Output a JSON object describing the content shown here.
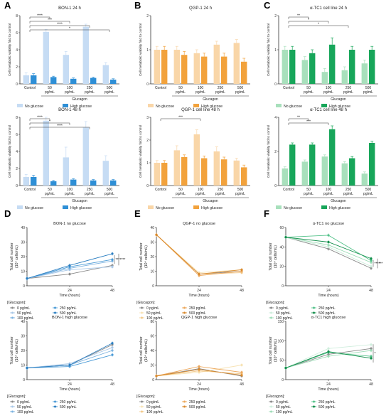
{
  "colors": {
    "A_light": "#c6dcf4",
    "A_dark": "#2e8fd6",
    "B_light": "#f9d6a8",
    "B_dark": "#f2a23c",
    "C_light": "#a8e0bc",
    "C_dark": "#17a65a",
    "line_blue": [
      "#8a8a8a",
      "#a9c8e8",
      "#7db3e0",
      "#4a9ad6",
      "#2b7fc2"
    ],
    "line_orange": [
      "#8a8a8a",
      "#f7e3b5",
      "#f2c98a",
      "#eda75a",
      "#d9892c"
    ],
    "line_green": [
      "#8a8a8a",
      "#cfeedd",
      "#9fdcb8",
      "#54c28a",
      "#138f4c"
    ]
  },
  "panel_labels": [
    "A",
    "B",
    "C",
    "D",
    "E",
    "F"
  ],
  "common": {
    "bar_ylabel": "Cell metabolic viability fold to control",
    "bar_categories": [
      "Control",
      "50\npg/mL",
      "100\npg/mL",
      "250\npg/mL",
      "500\npg/mL"
    ],
    "bar_xlabel": "Glucagon",
    "legend_no": "No glucose",
    "legend_high": "High glucose",
    "line_ylabel": "Total cell number\n(10⁴ cells/mL)",
    "line_xlabel": "Time (hours)",
    "line_ticks_x": [
      "24",
      "48"
    ],
    "legend_title": "[Glucagon]:",
    "legend_items": [
      "0 pg/mL",
      "50 pg/mL",
      "100 pg/mL",
      "250 pg/mL",
      "500 pg/mL"
    ]
  },
  "chart_data": [
    {
      "id": "A1",
      "type": "bar",
      "title": "BON-1 24 h",
      "colorset": "A",
      "ylim": [
        0,
        8
      ],
      "yticks": [
        "0",
        "2",
        "4",
        "6",
        "8"
      ],
      "series": [
        {
          "name": "No glucose",
          "values": [
            1.0,
            6.1,
            3.4,
            6.7,
            2.2
          ],
          "err": [
            0.3,
            0.3,
            0.4,
            0.3,
            0.3
          ]
        },
        {
          "name": "High glucose",
          "values": [
            1.0,
            0.8,
            0.6,
            0.7,
            0.5
          ],
          "err": [
            0.2,
            0.1,
            0.1,
            0.1,
            0.1
          ]
        }
      ],
      "sig": [
        {
          "from": 0,
          "to": 1,
          "label": "****",
          "lvl": 1
        },
        {
          "from": 0,
          "to": 2,
          "label": "***",
          "lvl": 2
        },
        {
          "from": 0,
          "to": 3,
          "label": "****",
          "lvl": 3
        },
        {
          "from": 0,
          "to": 4,
          "label": "*",
          "lvl": 4
        }
      ]
    },
    {
      "id": "A2",
      "type": "bar",
      "title": "BON-1 48 h",
      "colorset": "A",
      "ylim": [
        0,
        8
      ],
      "yticks": [
        "0",
        "2",
        "4",
        "6",
        "8"
      ],
      "series": [
        {
          "name": "No glucose",
          "values": [
            1.0,
            7.6,
            3.3,
            6.8,
            2.9
          ],
          "err": [
            0.3,
            0.4,
            1.2,
            0.7,
            0.6
          ]
        },
        {
          "name": "High glucose",
          "values": [
            1.0,
            0.5,
            0.7,
            0.6,
            0.6
          ],
          "err": [
            0.2,
            0.1,
            0.1,
            0.1,
            0.1
          ]
        }
      ],
      "sig": [
        {
          "from": 0,
          "to": 1,
          "label": "****",
          "lvl": 1
        },
        {
          "from": 0,
          "to": 2,
          "label": "*",
          "lvl": 2
        },
        {
          "from": 0,
          "to": 3,
          "label": "****",
          "lvl": 3
        }
      ]
    },
    {
      "id": "B1",
      "type": "bar",
      "title": "QGP-1 24 h",
      "colorset": "B",
      "ylim": [
        0,
        2
      ],
      "yticks": [
        "0",
        "1",
        "2"
      ],
      "series": [
        {
          "name": "No glucose",
          "values": [
            1.0,
            1.0,
            0.9,
            1.15,
            1.2
          ],
          "err": [
            0.1,
            0.1,
            0.1,
            0.1,
            0.1
          ]
        },
        {
          "name": "High glucose",
          "values": [
            1.0,
            0.85,
            0.8,
            0.8,
            0.65
          ],
          "err": [
            0.1,
            0.1,
            0.1,
            0.1,
            0.1
          ]
        }
      ],
      "sig": []
    },
    {
      "id": "B2",
      "type": "bar",
      "title": "QGP-1 cell line 48 h",
      "colorset": "B",
      "ylim": [
        0,
        3
      ],
      "yticks": [
        "0",
        "1",
        "2",
        "3"
      ],
      "series": [
        {
          "name": "No glucose",
          "values": [
            1.0,
            1.55,
            2.25,
            1.5,
            1.1
          ],
          "err": [
            0.1,
            0.2,
            0.2,
            0.2,
            0.1
          ]
        },
        {
          "name": "High glucose",
          "values": [
            1.0,
            1.25,
            1.2,
            1.15,
            0.8
          ],
          "err": [
            0.1,
            0.1,
            0.1,
            0.1,
            0.1
          ]
        }
      ],
      "sig": [
        {
          "from": 0,
          "to": 2,
          "label": "***",
          "lvl": 1
        }
      ]
    },
    {
      "id": "C1",
      "type": "bar",
      "title": "α-TC1 cell line 24 h",
      "colorset": "C",
      "ylim": [
        0,
        2
      ],
      "yticks": [
        "0",
        "1",
        "2"
      ],
      "series": [
        {
          "name": "No glucose",
          "values": [
            1.0,
            0.7,
            0.35,
            0.4,
            0.6
          ],
          "err": [
            0.1,
            0.1,
            0.1,
            0.1,
            0.1
          ]
        },
        {
          "name": "High glucose",
          "values": [
            1.0,
            0.9,
            1.15,
            1.0,
            1.0
          ],
          "err": [
            0.1,
            0.1,
            0.2,
            0.1,
            0.1
          ]
        }
      ],
      "sig": [
        {
          "from": 0,
          "to": 1,
          "label": "**",
          "lvl": 1
        },
        {
          "from": 0,
          "to": 2,
          "label": "*",
          "lvl": 2
        },
        {
          "from": 0,
          "to": 3,
          "label": "*",
          "lvl": 3
        }
      ]
    },
    {
      "id": "C2",
      "type": "bar",
      "title": "α-TC1 cell line 48 h",
      "colorset": "C",
      "ylim": [
        0,
        4
      ],
      "yticks": [
        "0",
        "2",
        "4"
      ],
      "series": [
        {
          "name": "No glucose",
          "values": [
            1.0,
            1.4,
            1.7,
            1.3,
            0.7
          ],
          "err": [
            0.1,
            0.1,
            0.1,
            0.1,
            0.1
          ]
        },
        {
          "name": "High glucose",
          "values": [
            2.4,
            2.4,
            3.3,
            1.6,
            2.5
          ],
          "err": [
            0.1,
            0.1,
            0.2,
            0.1,
            0.1
          ]
        }
      ],
      "sig": [
        {
          "from": 0,
          "to": 1,
          "label": "**",
          "lvl": 1
        },
        {
          "from": 0,
          "to": 2,
          "label": "***",
          "lvl": 2
        }
      ]
    },
    {
      "id": "D1",
      "type": "line",
      "title": "BON-1 no glucose",
      "palette": "line_blue",
      "ylim": [
        0,
        40
      ],
      "yticks": [
        "0",
        "10",
        "20",
        "30",
        "40"
      ],
      "x": [
        0,
        24,
        48
      ],
      "series": [
        {
          "name": "0 pg/mL",
          "values": [
            5,
            8,
            14
          ]
        },
        {
          "name": "50 pg/mL",
          "values": [
            5,
            11,
            13
          ]
        },
        {
          "name": "100 pg/mL",
          "values": [
            5,
            12,
            17
          ]
        },
        {
          "name": "250 pg/mL",
          "values": [
            5,
            13,
            18
          ]
        },
        {
          "name": "500 pg/mL",
          "values": [
            5,
            14,
            22
          ]
        }
      ],
      "sig": [
        {
          "label": "***"
        },
        {
          "label": "****"
        }
      ]
    },
    {
      "id": "D2",
      "type": "line",
      "title": "BON-1 high glucose",
      "palette": "line_blue",
      "ylim": [
        0,
        40
      ],
      "yticks": [
        "0",
        "10",
        "20",
        "30",
        "40"
      ],
      "x": [
        0,
        24,
        48
      ],
      "series": [
        {
          "name": "0 pg/mL",
          "values": [
            8,
            10,
            24
          ]
        },
        {
          "name": "50 pg/mL",
          "values": [
            8,
            11,
            22
          ]
        },
        {
          "name": "100 pg/mL",
          "values": [
            8,
            10,
            20
          ]
        },
        {
          "name": "250 pg/mL",
          "values": [
            8,
            9,
            17
          ]
        },
        {
          "name": "500 pg/mL",
          "values": [
            8,
            10,
            25
          ]
        }
      ],
      "sig": []
    },
    {
      "id": "E1",
      "type": "line",
      "title": "QGP-1 no glucose",
      "palette": "line_orange",
      "ylim": [
        0,
        40
      ],
      "yticks": [
        "0",
        "10",
        "20",
        "30",
        "40"
      ],
      "x": [
        0,
        24,
        48
      ],
      "series": [
        {
          "name": "0 pg/mL",
          "values": [
            35,
            8,
            10
          ]
        },
        {
          "name": "50 pg/mL",
          "values": [
            35,
            9,
            11
          ]
        },
        {
          "name": "100 pg/mL",
          "values": [
            35,
            8,
            9
          ]
        },
        {
          "name": "250 pg/mL",
          "values": [
            35,
            7,
            10
          ]
        },
        {
          "name": "500 pg/mL",
          "values": [
            35,
            8,
            11
          ]
        }
      ],
      "sig": []
    },
    {
      "id": "E2",
      "type": "line",
      "title": "QGP-1 high glucose",
      "palette": "line_orange",
      "ylim": [
        0,
        80
      ],
      "yticks": [
        "0",
        "20",
        "40",
        "60",
        "80"
      ],
      "x": [
        0,
        24,
        48
      ],
      "series": [
        {
          "name": "0 pg/mL",
          "values": [
            5,
            15,
            5
          ]
        },
        {
          "name": "50 pg/mL",
          "values": [
            5,
            10,
            20
          ]
        },
        {
          "name": "100 pg/mL",
          "values": [
            5,
            12,
            8
          ]
        },
        {
          "name": "250 pg/mL",
          "values": [
            5,
            18,
            10
          ]
        },
        {
          "name": "500 pg/mL",
          "values": [
            5,
            14,
            6
          ]
        }
      ],
      "sig": []
    },
    {
      "id": "F1",
      "type": "line",
      "title": "α-TC1 no glucose",
      "palette": "line_green",
      "ylim": [
        0,
        60
      ],
      "yticks": [
        "0",
        "20",
        "40",
        "60"
      ],
      "x": [
        0,
        24,
        48
      ],
      "series": [
        {
          "name": "0 pg/mL",
          "values": [
            50,
            38,
            18
          ]
        },
        {
          "name": "50 pg/mL",
          "values": [
            50,
            40,
            20
          ]
        },
        {
          "name": "100 pg/mL",
          "values": [
            50,
            42,
            24
          ]
        },
        {
          "name": "250 pg/mL",
          "values": [
            50,
            52,
            26
          ]
        },
        {
          "name": "500 pg/mL",
          "values": [
            50,
            45,
            28
          ]
        }
      ],
      "sig": [
        {
          "label": "****"
        },
        {
          "label": "***"
        }
      ]
    },
    {
      "id": "F2",
      "type": "line",
      "title": "α-TC1 high glucose",
      "palette": "line_green",
      "ylim": [
        0,
        150
      ],
      "yticks": [
        "0",
        "50",
        "100",
        "150"
      ],
      "x": [
        0,
        24,
        48
      ],
      "series": [
        {
          "name": "0 pg/mL",
          "values": [
            30,
            65,
            80
          ]
        },
        {
          "name": "50 pg/mL",
          "values": [
            30,
            80,
            90
          ]
        },
        {
          "name": "100 pg/mL",
          "values": [
            30,
            60,
            75
          ]
        },
        {
          "name": "250 pg/mL",
          "values": [
            30,
            70,
            60
          ]
        },
        {
          "name": "500 pg/mL",
          "values": [
            30,
            72,
            55
          ]
        }
      ],
      "sig": [
        {
          "label": "*"
        }
      ]
    }
  ]
}
